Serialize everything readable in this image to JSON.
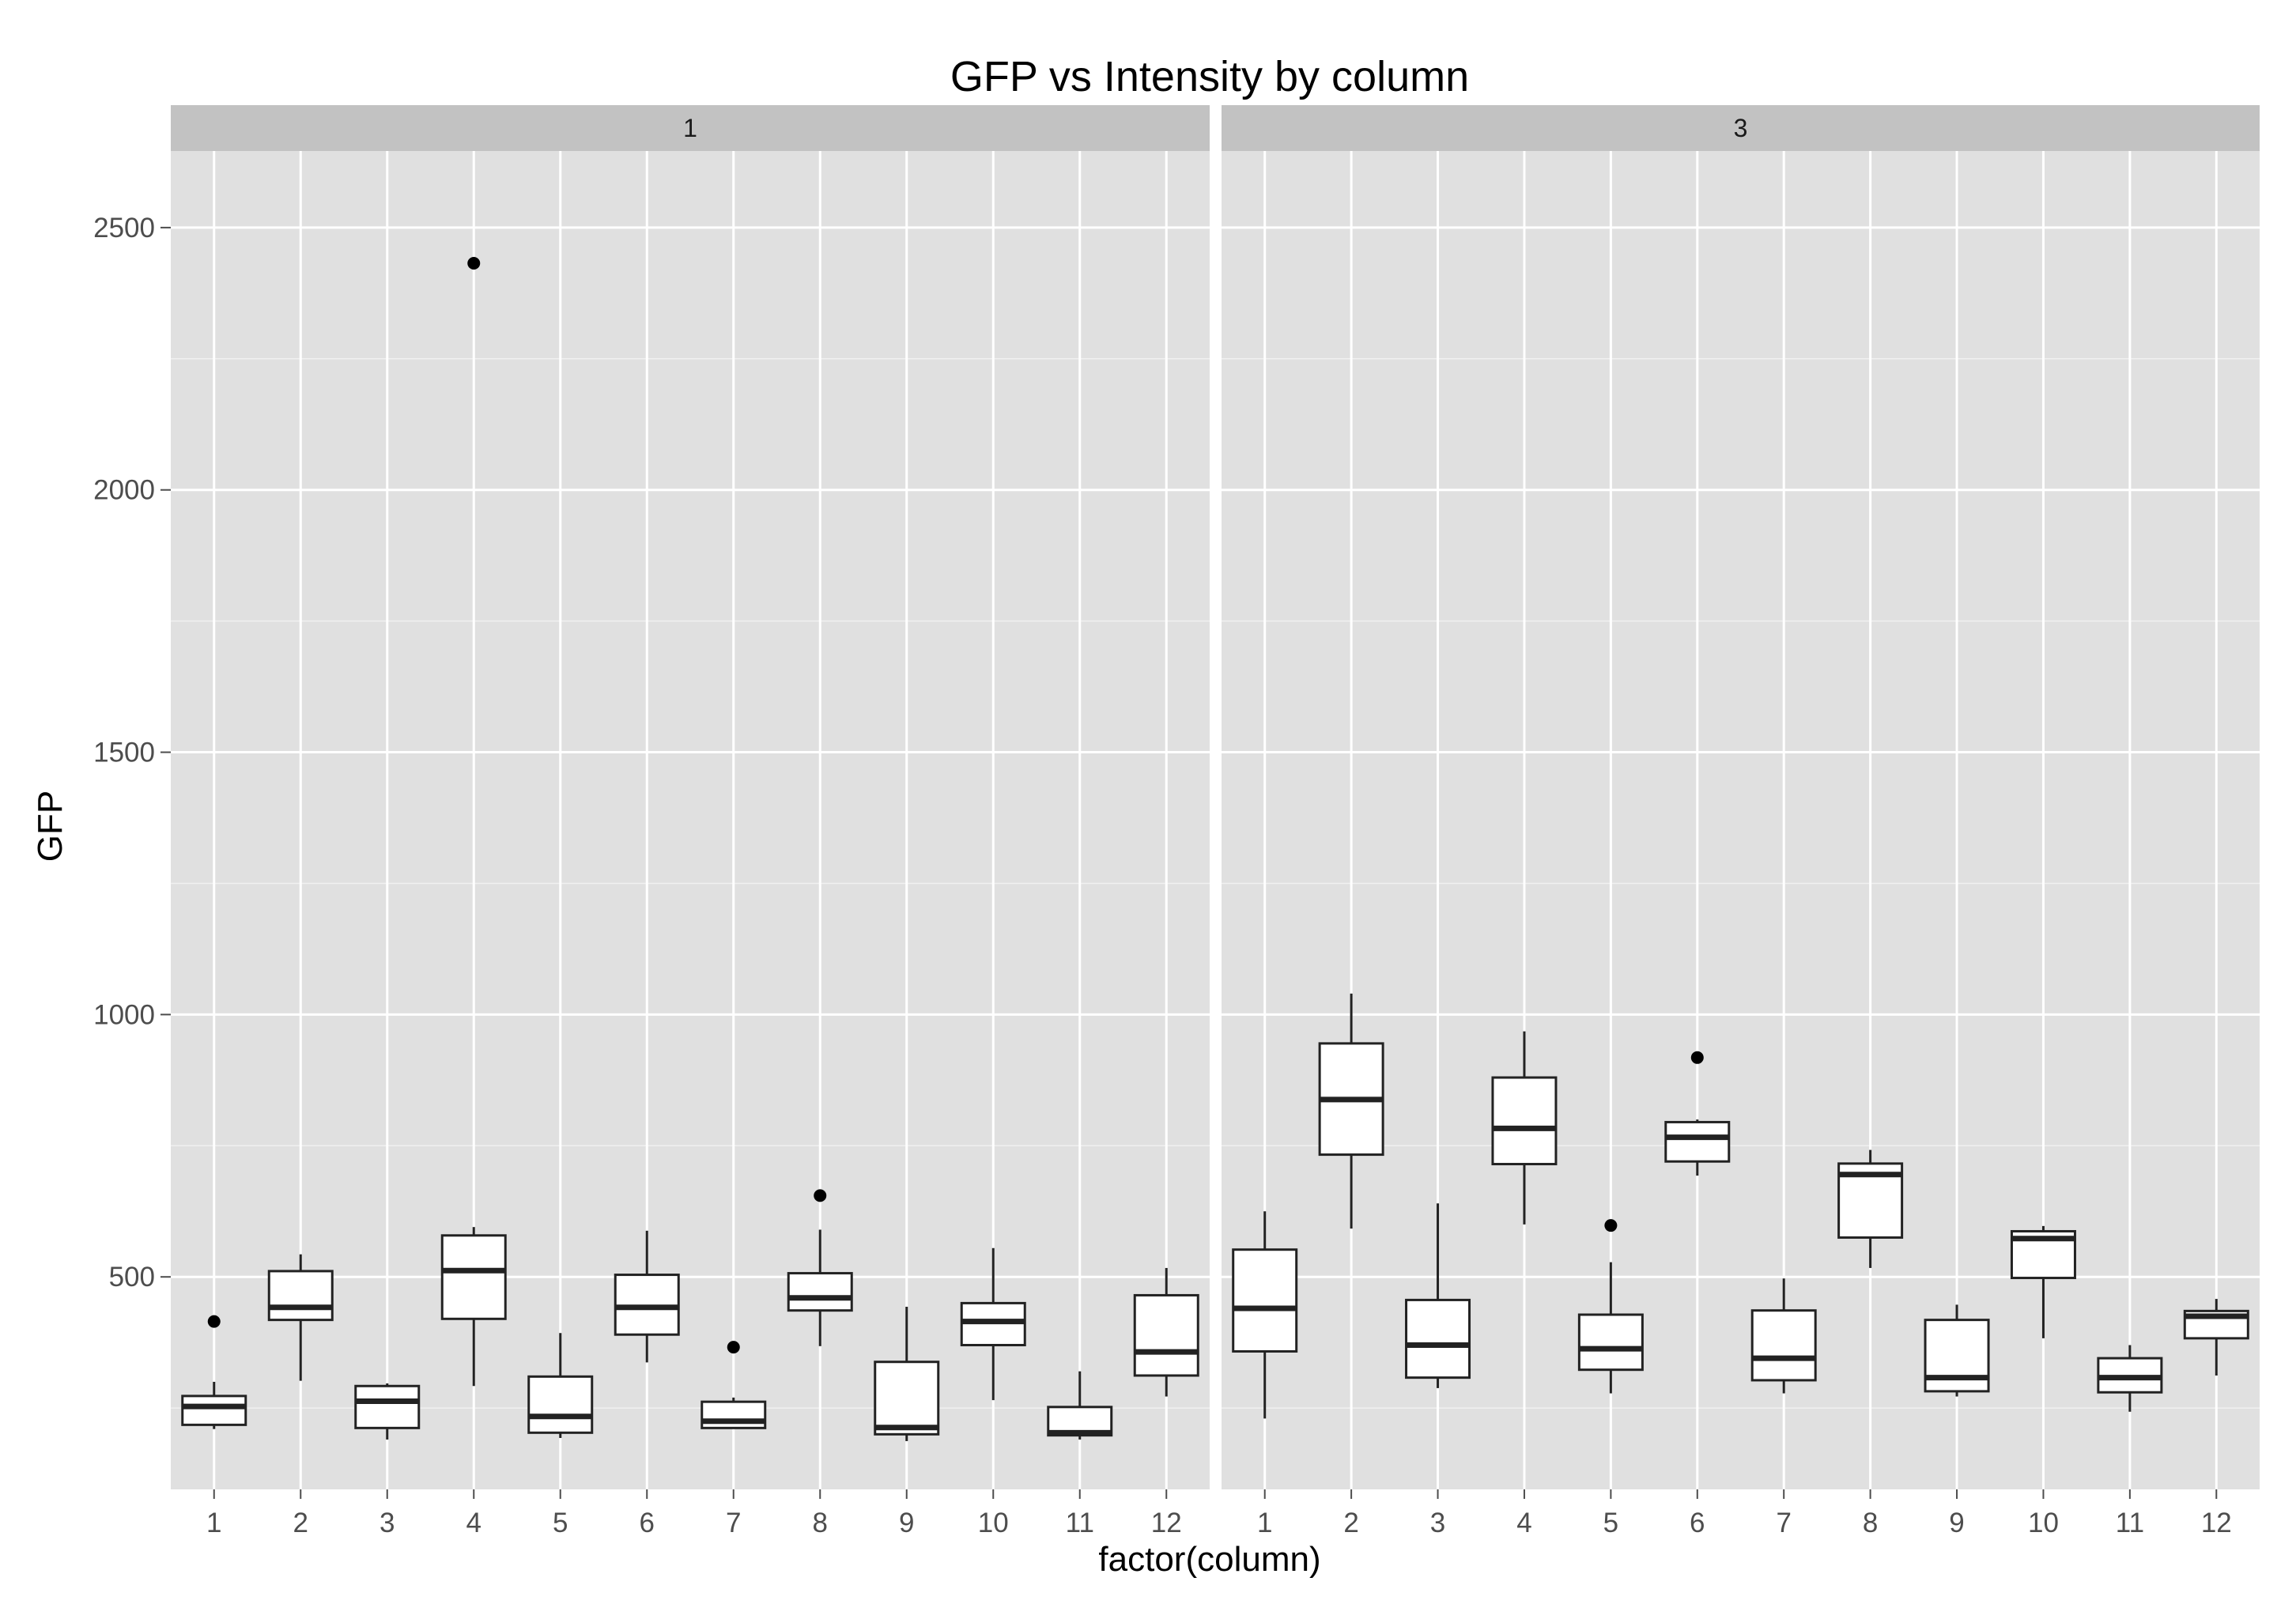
{
  "chart_data": {
    "type": "box",
    "title": "GFP vs Intensity by column",
    "xlabel": "factor(column)",
    "ylabel": "GFP",
    "ylim": [
      95,
      2646
    ],
    "yticks": [
      500,
      1000,
      1500,
      2000,
      2500
    ],
    "ytick_labels": [
      "500",
      "1000",
      "1500",
      "2000",
      "2500"
    ],
    "grid": true,
    "legend": "none",
    "categories": [
      "1",
      "2",
      "3",
      "4",
      "5",
      "6",
      "7",
      "8",
      "9",
      "10",
      "11",
      "12"
    ],
    "panels": [
      {
        "facet": "1",
        "boxes": [
          {
            "x": "1",
            "lower_whisker": 210,
            "q1": 218,
            "median": 253,
            "q3": 273,
            "upper_whisker": 300,
            "outliers": [
              415
            ]
          },
          {
            "x": "2",
            "lower_whisker": 302,
            "q1": 418,
            "median": 442,
            "q3": 511,
            "upper_whisker": 543,
            "outliers": []
          },
          {
            "x": "3",
            "lower_whisker": 190,
            "q1": 212,
            "median": 263,
            "q3": 292,
            "upper_whisker": 297,
            "outliers": []
          },
          {
            "x": "4",
            "lower_whisker": 292,
            "q1": 420,
            "median": 512,
            "q3": 579,
            "upper_whisker": 595,
            "outliers": [
              2432
            ]
          },
          {
            "x": "5",
            "lower_whisker": 193,
            "q1": 203,
            "median": 234,
            "q3": 310,
            "upper_whisker": 393,
            "outliers": []
          },
          {
            "x": "6",
            "lower_whisker": 337,
            "q1": 390,
            "median": 442,
            "q3": 504,
            "upper_whisker": 588,
            "outliers": []
          },
          {
            "x": "7",
            "lower_whisker": 212,
            "q1": 212,
            "median": 225,
            "q3": 262,
            "upper_whisker": 270,
            "outliers": [
              366
            ]
          },
          {
            "x": "8",
            "lower_whisker": 368,
            "q1": 436,
            "median": 460,
            "q3": 507,
            "upper_whisker": 590,
            "outliers": [
              655
            ]
          },
          {
            "x": "9",
            "lower_whisker": 187,
            "q1": 200,
            "median": 213,
            "q3": 338,
            "upper_whisker": 443,
            "outliers": []
          },
          {
            "x": "10",
            "lower_whisker": 265,
            "q1": 370,
            "median": 415,
            "q3": 450,
            "upper_whisker": 555,
            "outliers": []
          },
          {
            "x": "11",
            "lower_whisker": 190,
            "q1": 198,
            "median": 203,
            "q3": 252,
            "upper_whisker": 320,
            "outliers": []
          },
          {
            "x": "12",
            "lower_whisker": 272,
            "q1": 312,
            "median": 357,
            "q3": 465,
            "upper_whisker": 517,
            "outliers": []
          }
        ]
      },
      {
        "facet": "3",
        "boxes": [
          {
            "x": "1",
            "lower_whisker": 230,
            "q1": 358,
            "median": 440,
            "q3": 552,
            "upper_whisker": 625,
            "outliers": []
          },
          {
            "x": "2",
            "lower_whisker": 592,
            "q1": 733,
            "median": 838,
            "q3": 945,
            "upper_whisker": 1040,
            "outliers": []
          },
          {
            "x": "3",
            "lower_whisker": 288,
            "q1": 308,
            "median": 370,
            "q3": 456,
            "upper_whisker": 640,
            "outliers": []
          },
          {
            "x": "4",
            "lower_whisker": 600,
            "q1": 715,
            "median": 783,
            "q3": 880,
            "upper_whisker": 968,
            "outliers": []
          },
          {
            "x": "5",
            "lower_whisker": 278,
            "q1": 323,
            "median": 363,
            "q3": 428,
            "upper_whisker": 528,
            "outliers": [
              598
            ]
          },
          {
            "x": "6",
            "lower_whisker": 693,
            "q1": 720,
            "median": 766,
            "q3": 795,
            "upper_whisker": 800,
            "outliers": [
              918
            ]
          },
          {
            "x": "7",
            "lower_whisker": 278,
            "q1": 303,
            "median": 345,
            "q3": 436,
            "upper_whisker": 497,
            "outliers": []
          },
          {
            "x": "8",
            "lower_whisker": 517,
            "q1": 575,
            "median": 695,
            "q3": 716,
            "upper_whisker": 742,
            "outliers": []
          },
          {
            "x": "9",
            "lower_whisker": 272,
            "q1": 282,
            "median": 308,
            "q3": 418,
            "upper_whisker": 447,
            "outliers": []
          },
          {
            "x": "10",
            "lower_whisker": 383,
            "q1": 498,
            "median": 573,
            "q3": 587,
            "upper_whisker": 597,
            "outliers": []
          },
          {
            "x": "11",
            "lower_whisker": 243,
            "q1": 280,
            "median": 308,
            "q3": 345,
            "upper_whisker": 370,
            "outliers": []
          },
          {
            "x": "12",
            "lower_whisker": 312,
            "q1": 383,
            "median": 425,
            "q3": 435,
            "upper_whisker": 458,
            "outliers": []
          }
        ]
      }
    ],
    "colors": {
      "panel_background": "#e0e0e0",
      "grid_major": "#ffffff",
      "grid_minor": "#f0f0f0",
      "strip_background": "#c2c2c2",
      "box_fill": "#ffffff",
      "box_stroke": "#222222",
      "outlier": "#000000"
    }
  }
}
